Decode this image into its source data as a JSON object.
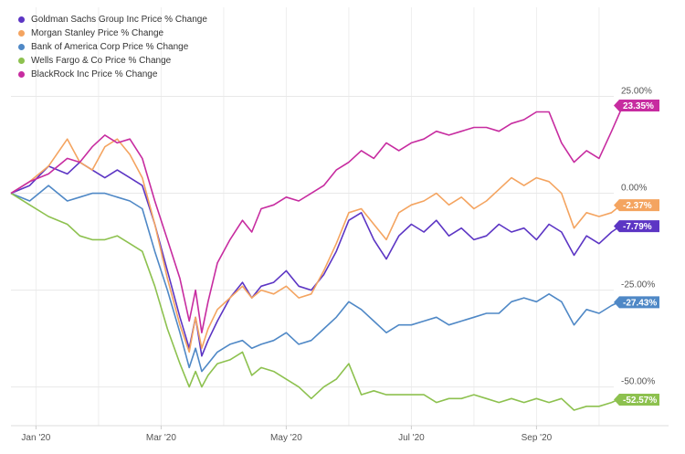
{
  "chart_data": {
    "type": "line",
    "x_tick_labels": [
      "Jan '20",
      "Mar '20",
      "May '20",
      "Jul '20",
      "Sep '20"
    ],
    "y_tick_labels": [
      "25.00%",
      "0.00%",
      "-25.00%",
      "-50.00%"
    ],
    "y_ticks": [
      25,
      0,
      -25,
      -50
    ],
    "ylim": [
      -60,
      48
    ],
    "x_range_months": [
      0,
      9.8
    ],
    "grid": true,
    "legend_position": "top-left",
    "series": [
      {
        "name": "Goldman Sachs Group Inc Price % Change",
        "color": "#5c35c4",
        "last_label": "-7.79%",
        "points": [
          [
            0,
            0
          ],
          [
            0.3,
            2
          ],
          [
            0.6,
            7
          ],
          [
            0.9,
            5
          ],
          [
            1.1,
            8
          ],
          [
            1.3,
            6
          ],
          [
            1.5,
            4
          ],
          [
            1.7,
            6
          ],
          [
            1.9,
            4
          ],
          [
            2.1,
            2
          ],
          [
            2.3,
            -8
          ],
          [
            2.5,
            -20
          ],
          [
            2.7,
            -32
          ],
          [
            2.85,
            -40
          ],
          [
            2.95,
            -32
          ],
          [
            3.05,
            -42
          ],
          [
            3.15,
            -38
          ],
          [
            3.3,
            -33
          ],
          [
            3.5,
            -27
          ],
          [
            3.7,
            -23
          ],
          [
            3.85,
            -27
          ],
          [
            4.0,
            -24
          ],
          [
            4.2,
            -23
          ],
          [
            4.4,
            -20
          ],
          [
            4.6,
            -24
          ],
          [
            4.8,
            -25
          ],
          [
            5.0,
            -21
          ],
          [
            5.2,
            -15
          ],
          [
            5.4,
            -7
          ],
          [
            5.6,
            -5
          ],
          [
            5.8,
            -12
          ],
          [
            6.0,
            -17
          ],
          [
            6.2,
            -11
          ],
          [
            6.4,
            -8
          ],
          [
            6.6,
            -10
          ],
          [
            6.8,
            -7
          ],
          [
            7.0,
            -11
          ],
          [
            7.2,
            -9
          ],
          [
            7.4,
            -12
          ],
          [
            7.6,
            -11
          ],
          [
            7.8,
            -8
          ],
          [
            8.0,
            -10
          ],
          [
            8.2,
            -9
          ],
          [
            8.4,
            -12
          ],
          [
            8.6,
            -8
          ],
          [
            8.8,
            -10
          ],
          [
            9.0,
            -16
          ],
          [
            9.2,
            -11
          ],
          [
            9.4,
            -13
          ],
          [
            9.6,
            -10
          ],
          [
            9.8,
            -7.79
          ]
        ]
      },
      {
        "name": "Morgan Stanley Price % Change",
        "color": "#f4a460",
        "last_label": "-2.37%",
        "points": [
          [
            0,
            0
          ],
          [
            0.3,
            3
          ],
          [
            0.6,
            7
          ],
          [
            0.9,
            14
          ],
          [
            1.1,
            8
          ],
          [
            1.3,
            6
          ],
          [
            1.5,
            12
          ],
          [
            1.7,
            14
          ],
          [
            1.9,
            10
          ],
          [
            2.1,
            4
          ],
          [
            2.3,
            -8
          ],
          [
            2.5,
            -22
          ],
          [
            2.7,
            -34
          ],
          [
            2.85,
            -41
          ],
          [
            2.95,
            -32
          ],
          [
            3.05,
            -40
          ],
          [
            3.15,
            -35
          ],
          [
            3.3,
            -30
          ],
          [
            3.5,
            -27
          ],
          [
            3.7,
            -24
          ],
          [
            3.85,
            -27
          ],
          [
            4.0,
            -25
          ],
          [
            4.2,
            -26
          ],
          [
            4.4,
            -24
          ],
          [
            4.6,
            -27
          ],
          [
            4.8,
            -26
          ],
          [
            5.0,
            -20
          ],
          [
            5.2,
            -13
          ],
          [
            5.4,
            -5
          ],
          [
            5.6,
            -4
          ],
          [
            5.8,
            -8
          ],
          [
            6.0,
            -12
          ],
          [
            6.2,
            -5
          ],
          [
            6.4,
            -3
          ],
          [
            6.6,
            -2
          ],
          [
            6.8,
            0
          ],
          [
            7.0,
            -3
          ],
          [
            7.2,
            -1
          ],
          [
            7.4,
            -4
          ],
          [
            7.6,
            -2
          ],
          [
            7.8,
            1
          ],
          [
            8.0,
            4
          ],
          [
            8.2,
            2
          ],
          [
            8.4,
            4
          ],
          [
            8.6,
            3
          ],
          [
            8.8,
            0
          ],
          [
            9.0,
            -9
          ],
          [
            9.2,
            -5
          ],
          [
            9.4,
            -6
          ],
          [
            9.6,
            -5
          ],
          [
            9.8,
            -2.37
          ]
        ]
      },
      {
        "name": "Bank of America Corp Price % Change",
        "color": "#4f88c6",
        "last_label": "-27.43%",
        "points": [
          [
            0,
            0
          ],
          [
            0.3,
            -2
          ],
          [
            0.6,
            2
          ],
          [
            0.9,
            -2
          ],
          [
            1.1,
            -1
          ],
          [
            1.3,
            0
          ],
          [
            1.5,
            0
          ],
          [
            1.7,
            -1
          ],
          [
            1.9,
            -2
          ],
          [
            2.1,
            -4
          ],
          [
            2.3,
            -15
          ],
          [
            2.5,
            -25
          ],
          [
            2.7,
            -36
          ],
          [
            2.85,
            -45
          ],
          [
            2.95,
            -40
          ],
          [
            3.05,
            -46
          ],
          [
            3.15,
            -44
          ],
          [
            3.3,
            -41
          ],
          [
            3.5,
            -39
          ],
          [
            3.7,
            -38
          ],
          [
            3.85,
            -40
          ],
          [
            4.0,
            -39
          ],
          [
            4.2,
            -38
          ],
          [
            4.4,
            -36
          ],
          [
            4.6,
            -39
          ],
          [
            4.8,
            -38
          ],
          [
            5.0,
            -35
          ],
          [
            5.2,
            -32
          ],
          [
            5.4,
            -28
          ],
          [
            5.6,
            -30
          ],
          [
            5.8,
            -33
          ],
          [
            6.0,
            -36
          ],
          [
            6.2,
            -34
          ],
          [
            6.4,
            -34
          ],
          [
            6.6,
            -33
          ],
          [
            6.8,
            -32
          ],
          [
            7.0,
            -34
          ],
          [
            7.2,
            -33
          ],
          [
            7.4,
            -32
          ],
          [
            7.6,
            -31
          ],
          [
            7.8,
            -31
          ],
          [
            8.0,
            -28
          ],
          [
            8.2,
            -27
          ],
          [
            8.4,
            -28
          ],
          [
            8.6,
            -26
          ],
          [
            8.8,
            -28
          ],
          [
            9.0,
            -34
          ],
          [
            9.2,
            -30
          ],
          [
            9.4,
            -31
          ],
          [
            9.6,
            -29
          ],
          [
            9.8,
            -27.43
          ]
        ]
      },
      {
        "name": "Wells Fargo & Co Price % Change",
        "color": "#8dc14f",
        "last_label": "-52.57%",
        "points": [
          [
            0,
            0
          ],
          [
            0.3,
            -3
          ],
          [
            0.6,
            -6
          ],
          [
            0.9,
            -8
          ],
          [
            1.1,
            -11
          ],
          [
            1.3,
            -12
          ],
          [
            1.5,
            -12
          ],
          [
            1.7,
            -11
          ],
          [
            1.9,
            -13
          ],
          [
            2.1,
            -15
          ],
          [
            2.3,
            -24
          ],
          [
            2.5,
            -35
          ],
          [
            2.7,
            -44
          ],
          [
            2.85,
            -50
          ],
          [
            2.95,
            -46
          ],
          [
            3.05,
            -50
          ],
          [
            3.15,
            -47
          ],
          [
            3.3,
            -44
          ],
          [
            3.5,
            -43
          ],
          [
            3.7,
            -41
          ],
          [
            3.85,
            -47
          ],
          [
            4.0,
            -45
          ],
          [
            4.2,
            -46
          ],
          [
            4.4,
            -48
          ],
          [
            4.6,
            -50
          ],
          [
            4.8,
            -53
          ],
          [
            5.0,
            -50
          ],
          [
            5.2,
            -48
          ],
          [
            5.4,
            -44
          ],
          [
            5.6,
            -52
          ],
          [
            5.8,
            -51
          ],
          [
            6.0,
            -52
          ],
          [
            6.2,
            -52
          ],
          [
            6.4,
            -52
          ],
          [
            6.6,
            -52
          ],
          [
            6.8,
            -54
          ],
          [
            7.0,
            -53
          ],
          [
            7.2,
            -53
          ],
          [
            7.4,
            -52
          ],
          [
            7.6,
            -53
          ],
          [
            7.8,
            -54
          ],
          [
            8.0,
            -53
          ],
          [
            8.2,
            -54
          ],
          [
            8.4,
            -53
          ],
          [
            8.6,
            -54
          ],
          [
            8.8,
            -53
          ],
          [
            9.0,
            -56
          ],
          [
            9.2,
            -55
          ],
          [
            9.4,
            -55
          ],
          [
            9.6,
            -54
          ],
          [
            9.8,
            -52.57
          ]
        ]
      },
      {
        "name": "BlackRock Inc Price % Change",
        "color": "#c72ca0",
        "last_label": "23.35%",
        "points": [
          [
            0,
            0
          ],
          [
            0.3,
            3
          ],
          [
            0.6,
            5
          ],
          [
            0.9,
            9
          ],
          [
            1.1,
            8
          ],
          [
            1.3,
            12
          ],
          [
            1.5,
            15
          ],
          [
            1.7,
            13
          ],
          [
            1.9,
            14
          ],
          [
            2.1,
            9
          ],
          [
            2.3,
            -2
          ],
          [
            2.5,
            -12
          ],
          [
            2.7,
            -22
          ],
          [
            2.85,
            -33
          ],
          [
            2.95,
            -25
          ],
          [
            3.05,
            -36
          ],
          [
            3.15,
            -28
          ],
          [
            3.3,
            -18
          ],
          [
            3.5,
            -12
          ],
          [
            3.7,
            -7
          ],
          [
            3.85,
            -10
          ],
          [
            4.0,
            -4
          ],
          [
            4.2,
            -3
          ],
          [
            4.4,
            -1
          ],
          [
            4.6,
            -2
          ],
          [
            4.8,
            0
          ],
          [
            5.0,
            2
          ],
          [
            5.2,
            6
          ],
          [
            5.4,
            8
          ],
          [
            5.6,
            11
          ],
          [
            5.8,
            9
          ],
          [
            6.0,
            13
          ],
          [
            6.2,
            11
          ],
          [
            6.4,
            13
          ],
          [
            6.6,
            14
          ],
          [
            6.8,
            16
          ],
          [
            7.0,
            15
          ],
          [
            7.2,
            16
          ],
          [
            7.4,
            17
          ],
          [
            7.6,
            17
          ],
          [
            7.8,
            16
          ],
          [
            8.0,
            18
          ],
          [
            8.2,
            19
          ],
          [
            8.4,
            21
          ],
          [
            8.6,
            21
          ],
          [
            8.8,
            13
          ],
          [
            9.0,
            8
          ],
          [
            9.2,
            11
          ],
          [
            9.4,
            9
          ],
          [
            9.6,
            16
          ],
          [
            9.8,
            23.35
          ]
        ]
      }
    ]
  }
}
